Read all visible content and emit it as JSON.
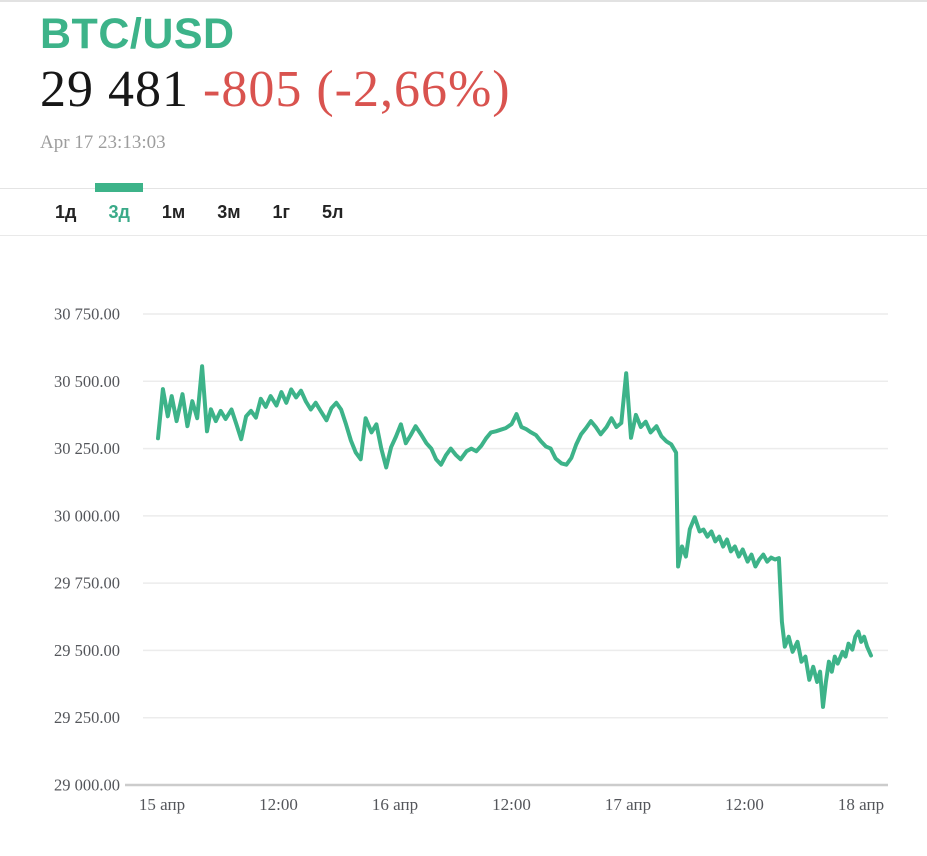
{
  "header": {
    "pair": "BTC/USD",
    "price": "29 481",
    "change": "-805 (-2,66%)",
    "timestamp": "Apr 17 23:13:03"
  },
  "tabs": [
    {
      "label": "1д",
      "active": false
    },
    {
      "label": "3д",
      "active": true
    },
    {
      "label": "1м",
      "active": false
    },
    {
      "label": "3м",
      "active": false
    },
    {
      "label": "1г",
      "active": false
    },
    {
      "label": "5л",
      "active": false
    }
  ],
  "colors": {
    "accent_green": "#3db389",
    "line_green": "#3db389",
    "negative_red": "#d9534f",
    "gridline": "#ececec",
    "axis_line": "#cccccc",
    "tick_text": "#54565b",
    "timestamp_gray": "#9d9d9d"
  },
  "chart_data": {
    "type": "line",
    "title": "BTC/USD 3-day price",
    "series_name": "BTC/USD",
    "x_unit": "hours since Apr 15 00:00",
    "xlim_hours": [
      0,
      72.8
    ],
    "ylim": [
      29000,
      30750
    ],
    "grid": true,
    "legend": false,
    "yticks": [
      {
        "value": 30750,
        "label": "30 750.00"
      },
      {
        "value": 30500,
        "label": "30 500.00"
      },
      {
        "value": 30250,
        "label": "30 250.00"
      },
      {
        "value": 30000,
        "label": "30 000.00"
      },
      {
        "value": 29750,
        "label": "29 750.00"
      },
      {
        "value": 29500,
        "label": "29 500.00"
      },
      {
        "value": 29250,
        "label": "29 250.00"
      },
      {
        "value": 29000,
        "label": "29 000.00"
      }
    ],
    "xticks": [
      "15 апр",
      "12:00",
      "16 апр",
      "12:00",
      "17 апр",
      "12:00",
      "18 апр"
    ],
    "points": [
      [
        0,
        30288
      ],
      [
        0.5,
        30471
      ],
      [
        1,
        30370
      ],
      [
        1.4,
        30445
      ],
      [
        1.9,
        30352
      ],
      [
        2.5,
        30452
      ],
      [
        3,
        30333
      ],
      [
        3.5,
        30426
      ],
      [
        4,
        30363
      ],
      [
        4.5,
        30556
      ],
      [
        5,
        30314
      ],
      [
        5.4,
        30396
      ],
      [
        5.9,
        30352
      ],
      [
        6.4,
        30390
      ],
      [
        6.9,
        30360
      ],
      [
        7.5,
        30395
      ],
      [
        8,
        30340
      ],
      [
        8.5,
        30285
      ],
      [
        9,
        30370
      ],
      [
        9.5,
        30390
      ],
      [
        10,
        30365
      ],
      [
        10.5,
        30435
      ],
      [
        11,
        30405
      ],
      [
        11.5,
        30445
      ],
      [
        12.1,
        30410
      ],
      [
        12.6,
        30460
      ],
      [
        13.1,
        30420
      ],
      [
        13.6,
        30470
      ],
      [
        14.1,
        30440
      ],
      [
        14.6,
        30465
      ],
      [
        15.1,
        30425
      ],
      [
        15.6,
        30395
      ],
      [
        16.1,
        30420
      ],
      [
        16.6,
        30390
      ],
      [
        17.2,
        30355
      ],
      [
        17.7,
        30400
      ],
      [
        18.2,
        30420
      ],
      [
        18.7,
        30395
      ],
      [
        19.2,
        30340
      ],
      [
        19.7,
        30280
      ],
      [
        20.2,
        30235
      ],
      [
        20.7,
        30210
      ],
      [
        21.2,
        30363
      ],
      [
        21.8,
        30310
      ],
      [
        22.3,
        30340
      ],
      [
        22.8,
        30250
      ],
      [
        23.3,
        30180
      ],
      [
        23.8,
        30255
      ],
      [
        24.3,
        30295
      ],
      [
        24.8,
        30340
      ],
      [
        25.3,
        30270
      ],
      [
        25.8,
        30300
      ],
      [
        26.3,
        30333
      ],
      [
        26.9,
        30300
      ],
      [
        27.4,
        30270
      ],
      [
        27.9,
        30250
      ],
      [
        28.4,
        30210
      ],
      [
        28.9,
        30190
      ],
      [
        29.4,
        30225
      ],
      [
        29.9,
        30250
      ],
      [
        30.4,
        30227
      ],
      [
        30.9,
        30210
      ],
      [
        31.5,
        30240
      ],
      [
        32,
        30250
      ],
      [
        32.5,
        30240
      ],
      [
        33,
        30260
      ],
      [
        33.5,
        30288
      ],
      [
        34,
        30310
      ],
      [
        34.5,
        30314
      ],
      [
        35,
        30320
      ],
      [
        35.5,
        30326
      ],
      [
        36.1,
        30341
      ],
      [
        36.6,
        30378
      ],
      [
        37.1,
        30330
      ],
      [
        37.6,
        30322
      ],
      [
        38.1,
        30310
      ],
      [
        38.6,
        30300
      ],
      [
        39.1,
        30277
      ],
      [
        39.6,
        30258
      ],
      [
        40.1,
        30250
      ],
      [
        40.6,
        30213
      ],
      [
        41.2,
        30195
      ],
      [
        41.7,
        30190
      ],
      [
        42.2,
        30215
      ],
      [
        42.7,
        30265
      ],
      [
        43.2,
        30303
      ],
      [
        43.7,
        30326
      ],
      [
        44.2,
        30352
      ],
      [
        44.7,
        30330
      ],
      [
        45.2,
        30303
      ],
      [
        45.8,
        30330
      ],
      [
        46.3,
        30363
      ],
      [
        46.8,
        30330
      ],
      [
        47.3,
        30345
      ],
      [
        47.8,
        30530
      ],
      [
        48.3,
        30290
      ],
      [
        48.8,
        30375
      ],
      [
        49.3,
        30330
      ],
      [
        49.8,
        30350
      ],
      [
        50.3,
        30310
      ],
      [
        50.9,
        30333
      ],
      [
        51.4,
        30296
      ],
      [
        51.9,
        30277
      ],
      [
        52.4,
        30266
      ],
      [
        52.9,
        30235
      ],
      [
        53.1,
        29812
      ],
      [
        53.5,
        29886
      ],
      [
        53.9,
        29849
      ],
      [
        54.3,
        29950
      ],
      [
        54.8,
        29995
      ],
      [
        55.3,
        29942
      ],
      [
        55.7,
        29949
      ],
      [
        56.1,
        29923
      ],
      [
        56.5,
        29942
      ],
      [
        56.9,
        29905
      ],
      [
        57.3,
        29923
      ],
      [
        57.7,
        29886
      ],
      [
        58.1,
        29912
      ],
      [
        58.5,
        29868
      ],
      [
        58.9,
        29886
      ],
      [
        59.3,
        29849
      ],
      [
        59.7,
        29875
      ],
      [
        60.2,
        29830
      ],
      [
        60.6,
        29856
      ],
      [
        61,
        29812
      ],
      [
        61.4,
        29838
      ],
      [
        61.8,
        29856
      ],
      [
        62.2,
        29830
      ],
      [
        62.6,
        29845
      ],
      [
        63,
        29838
      ],
      [
        63.4,
        29843
      ],
      [
        63.7,
        29607
      ],
      [
        64,
        29514
      ],
      [
        64.4,
        29551
      ],
      [
        64.8,
        29495
      ],
      [
        65.3,
        29532
      ],
      [
        65.7,
        29458
      ],
      [
        66.1,
        29477
      ],
      [
        66.5,
        29391
      ],
      [
        66.9,
        29439
      ],
      [
        67.3,
        29383
      ],
      [
        67.6,
        29421
      ],
      [
        67.9,
        29290
      ],
      [
        68.2,
        29383
      ],
      [
        68.5,
        29458
      ],
      [
        68.8,
        29421
      ],
      [
        69.1,
        29477
      ],
      [
        69.4,
        29451
      ],
      [
        69.9,
        29495
      ],
      [
        70.2,
        29477
      ],
      [
        70.5,
        29525
      ],
      [
        70.9,
        29503
      ],
      [
        71.2,
        29551
      ],
      [
        71.5,
        29570
      ],
      [
        71.8,
        29532
      ],
      [
        72.1,
        29551
      ],
      [
        72.4,
        29514
      ],
      [
        72.8,
        29481
      ]
    ]
  }
}
